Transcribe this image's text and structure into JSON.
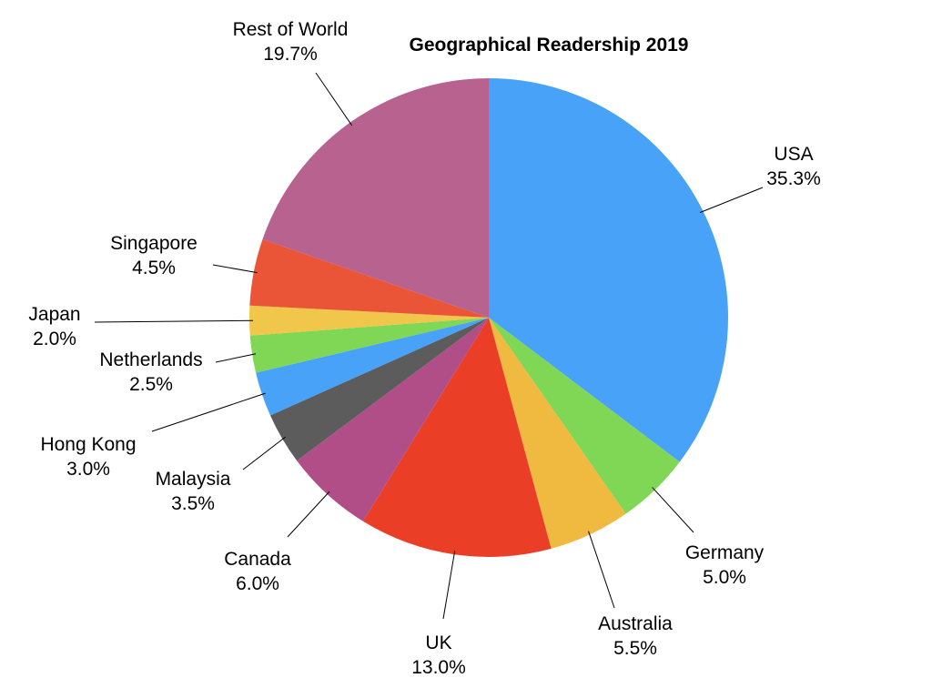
{
  "chart_data": {
    "type": "pie",
    "title": "Geographical Readership 2019",
    "legend": "none",
    "slices": [
      {
        "label": "USA",
        "value": 35.3,
        "display": "35.3%",
        "color": "#47A2F8"
      },
      {
        "label": "Germany",
        "value": 5.0,
        "display": "5.0%",
        "color": "#80D755"
      },
      {
        "label": "Australia",
        "value": 5.5,
        "display": "5.5%",
        "color": "#F0BA41"
      },
      {
        "label": "UK",
        "value": 13.0,
        "display": "13.0%",
        "color": "#EA3F26"
      },
      {
        "label": "Canada",
        "value": 6.0,
        "display": "6.0%",
        "color": "#B14E88"
      },
      {
        "label": "Malaysia",
        "value": 3.5,
        "display": "3.5%",
        "color": "#5C5C5C"
      },
      {
        "label": "Hong Kong",
        "value": 3.0,
        "display": "3.0%",
        "color": "#47A2F8"
      },
      {
        "label": "Netherlands",
        "value": 2.5,
        "display": "2.5%",
        "color": "#80D755"
      },
      {
        "label": "Japan",
        "value": 2.0,
        "display": "2.0%",
        "color": "#F0C74A"
      },
      {
        "label": "Singapore",
        "value": 4.5,
        "display": "4.5%",
        "color": "#EA5538"
      },
      {
        "label": "Rest of World",
        "value": 19.7,
        "display": "19.7%",
        "color": "#B86290"
      }
    ]
  }
}
